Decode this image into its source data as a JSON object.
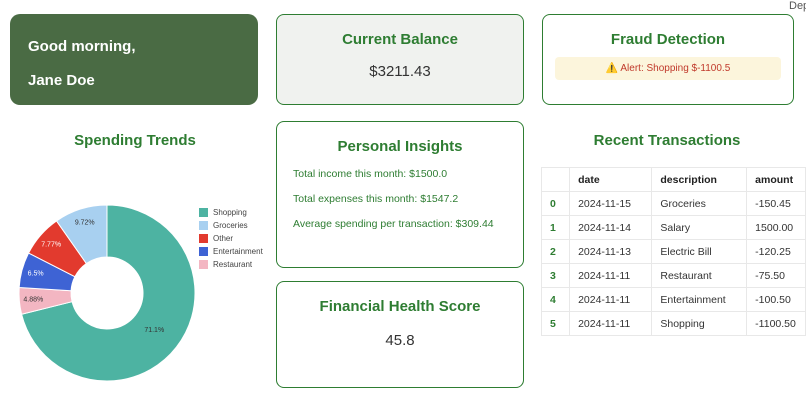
{
  "page": {
    "deploy_label": "Dep"
  },
  "colors": {
    "brand_green": "#2e7d32",
    "greeting_bg": "#4a6b44",
    "balance_bg": "#f0f2ef",
    "alert_bg": "#fcf5dc",
    "alert_text": "#c0392b"
  },
  "greeting": {
    "line1": "Good morning,",
    "line2": "Jane Doe"
  },
  "balance": {
    "title": "Current Balance",
    "value": "$3211.43"
  },
  "fraud": {
    "title": "Fraud Detection",
    "alert": "⚠️ Alert: Shopping $-1100.5"
  },
  "insights": {
    "title": "Personal Insights",
    "lines": [
      "Total income this month: $1500.0",
      "Total expenses this month: $1547.2",
      "Average spending per transaction: $309.44"
    ]
  },
  "health": {
    "title": "Financial Health Score",
    "value": "45.8"
  },
  "chart_data": {
    "type": "pie",
    "title": "Spending Trends",
    "donut": true,
    "legend_position": "right",
    "start_angle": "top",
    "direction": "clockwise",
    "labels": [
      "Shopping",
      "Groceries",
      "Other",
      "Entertainment",
      "Restaurant"
    ],
    "values": [
      71.1,
      9.72,
      7.77,
      6.5,
      4.88
    ],
    "value_labels": [
      "71.1%",
      "9.72%",
      "7.77%",
      "6.5%",
      "4.88%"
    ],
    "colors": [
      "#4db3a2",
      "#a8d0f0",
      "#e23a2e",
      "#3e63d4",
      "#f3b6c2"
    ],
    "label_text_colors": [
      "#333333",
      "#333333",
      "#ffffff",
      "#ffffff",
      "#333333"
    ],
    "visual_order": [
      "Shopping",
      "Restaurant",
      "Entertainment",
      "Other",
      "Groceries"
    ]
  },
  "transactions": {
    "title": "Recent Transactions",
    "headers": [
      "",
      "date",
      "description",
      "amount"
    ],
    "rows": [
      [
        "0",
        "2024-11-15",
        "Groceries",
        "-150.45"
      ],
      [
        "1",
        "2024-11-14",
        "Salary",
        "1500.00"
      ],
      [
        "2",
        "2024-11-13",
        "Electric Bill",
        "-120.25"
      ],
      [
        "3",
        "2024-11-11",
        "Restaurant",
        "-75.50"
      ],
      [
        "4",
        "2024-11-11",
        "Entertainment",
        "-100.50"
      ],
      [
        "5",
        "2024-11-11",
        "Shopping",
        "-1100.50"
      ]
    ]
  }
}
